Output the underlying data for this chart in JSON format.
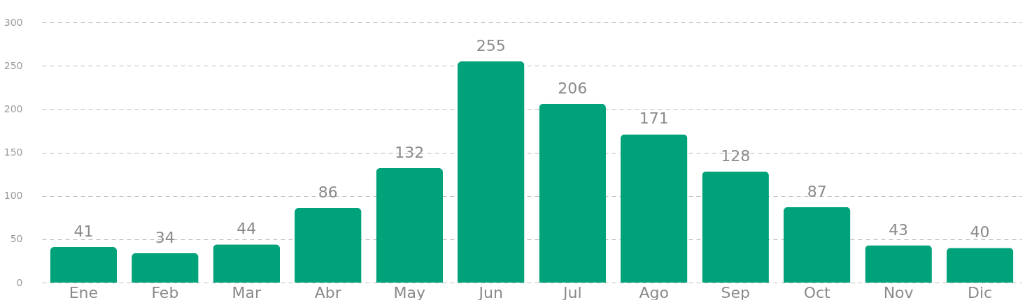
{
  "chart_data": {
    "type": "bar",
    "categories": [
      "Ene",
      "Feb",
      "Mar",
      "Abr",
      "May",
      "Jun",
      "Jul",
      "Ago",
      "Sep",
      "Oct",
      "Nov",
      "Dic"
    ],
    "values": [
      41,
      34,
      44,
      86,
      132,
      255,
      206,
      171,
      128,
      87,
      43,
      40
    ],
    "color": "#00a27a",
    "ylim": [
      0,
      300
    ],
    "yticks": [
      0,
      50,
      100,
      150,
      200,
      250,
      300
    ],
    "grid": "y",
    "data_labels": true
  }
}
